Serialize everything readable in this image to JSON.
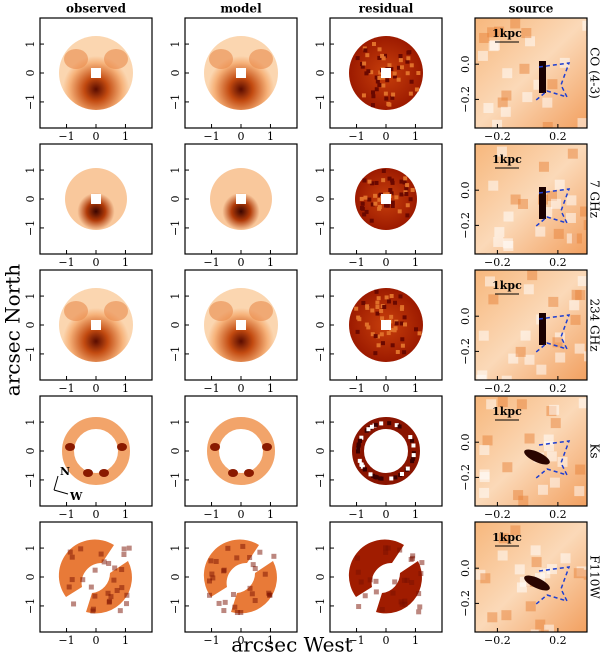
{
  "columns": [
    "observed",
    "model",
    "residual",
    "source"
  ],
  "rows": [
    "CO (4-3)",
    "7 GHz",
    "234 GHz",
    "Ks",
    "F110W"
  ],
  "x_label": "arcsec West",
  "y_label": "arcsec North",
  "scale_bar": "1kpc",
  "image_ticks": {
    "x": [
      "−1",
      "0",
      "1"
    ],
    "y": [
      "1",
      "0",
      "−1"
    ]
  },
  "source_ticks": {
    "x": [
      "−0.2",
      "0.2"
    ],
    "y": [
      "0.0",
      "−0.2"
    ]
  },
  "compass": {
    "north": "N",
    "west": "W"
  }
}
